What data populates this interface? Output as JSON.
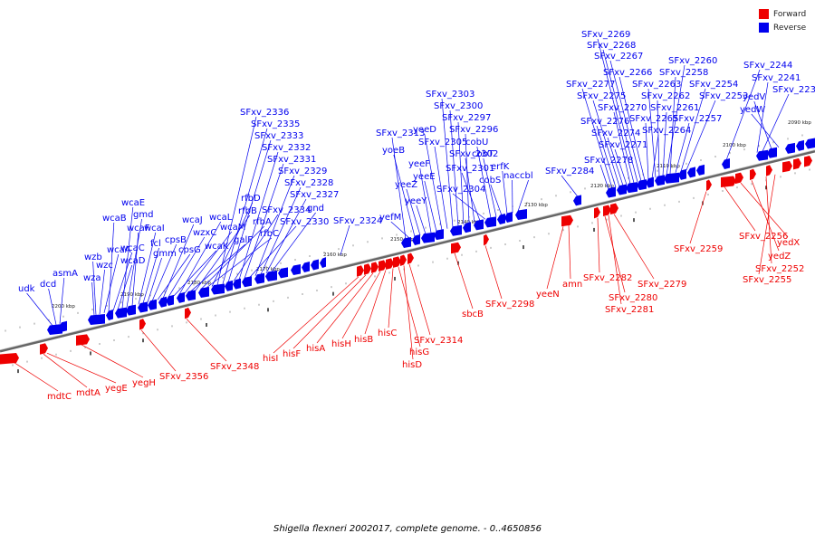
{
  "legend": {
    "forward_label": "Forward",
    "reverse_label": "Reverse",
    "forward_color": "#ee0000",
    "reverse_color": "#0000ee"
  },
  "caption": "Shigella flexneri 2002017, complete genome. - 0..4650856",
  "scale_labels": [
    "2200 kbp",
    "2190 kbp",
    "2180 kbp",
    "2170 kbp",
    "2160 kbp",
    "2150 kbp",
    "2140 kbp",
    "2130 kbp",
    "2120 kbp",
    "2110 kbp",
    "2100 kbp",
    "2090 kbp"
  ],
  "reverse_genes": [
    "udk",
    "dcd",
    "asmA",
    "wza",
    "wzb",
    "wzc",
    "wcaA",
    "wcaB",
    "wcaC",
    "wcaD",
    "wcaE",
    "gmd",
    "wcaF",
    "wcaI",
    "fcl",
    "gmm",
    "cpsB",
    "cpsG",
    "wcaJ",
    "wzxC",
    "wcaK",
    "wcaL",
    "wcaM",
    "galF",
    "rfbB",
    "rfbA",
    "rfbC",
    "rfbD",
    "SFxv_2336",
    "SFxv_2335",
    "SFxv_2333",
    "SFxv_2334",
    "SFxv_2332",
    "SFxv_2331",
    "SFxv_2330",
    "SFxv_2329",
    "SFxv_2328",
    "SFxv_2327",
    "gnd",
    "SFxv_2324",
    "SFxv_2313",
    "yefM",
    "yoeB",
    "yeeZ",
    "yeeY",
    "yeeF",
    "yeeE",
    "yeeD",
    "SFxv_2305",
    "SFxv_2303",
    "SFxv_2300",
    "SFxv_2297",
    "SFxv_2296",
    "SFxv_2302",
    "SFxv_2301",
    "SFxv_2304",
    "cobU",
    "cobT",
    "cobS",
    "erfK",
    "nac",
    "cbl",
    "SFxv_2284",
    "SFxv_2278",
    "SFxv_2277",
    "SFxv_2276",
    "SFxv_2275",
    "SFxv_2274",
    "SFxv_2271",
    "SFxv_2270",
    "SFxv_2269",
    "SFxv_2268",
    "SFxv_2267",
    "SFxv_2266",
    "SFxv_2265",
    "SFxv_2264",
    "SFxv_2263",
    "SFxv_2262",
    "SFxv_2261",
    "SFxv_2260",
    "SFxv_2258",
    "SFxv_2257",
    "SFxv_2254",
    "SFxv_2253",
    "SFxv_2244",
    "SFxv_2241",
    "SFxv_2237",
    "yedV",
    "yedW"
  ],
  "forward_genes": [
    "mdtC",
    "mdtA",
    "yegE",
    "yegH",
    "SFxv_2356",
    "SFxv_2348",
    "hisI",
    "hisF",
    "hisA",
    "hisH",
    "hisB",
    "hisC",
    "hisG",
    "hisD",
    "SFxv_2314",
    "sbcB",
    "SFxv_2298",
    "yeeN",
    "amn",
    "SFxv_2282",
    "SFxv_2280",
    "SFxv_2281",
    "SFxv_2279",
    "SFxv_2259",
    "SFxv_2256",
    "yedX",
    "yedZ",
    "SFxv_2252",
    "SFxv_2255"
  ]
}
